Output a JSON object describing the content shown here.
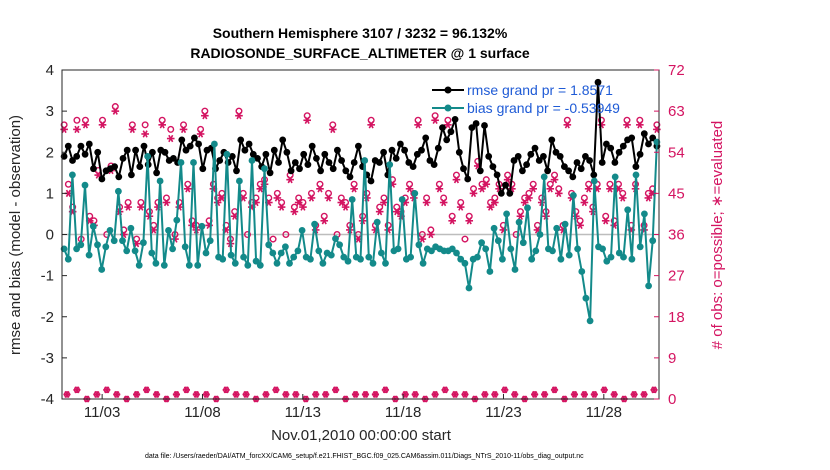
{
  "chart_data": {
    "type": "line",
    "title": "Southern Hemisphere 3107 / 3232 = 96.132%",
    "subtitle": "RADIOSONDE_SURFACE_ALTIMETER @ 1 surface",
    "xlabel": "Nov.01,2010 00:00:00 start",
    "ylabel": "rmse and bias (model - observation)",
    "y2label": "# of obs: o=possible; ∗=evaluated",
    "footer": "data file: /Users/raeder/DAI/ATM_forcXX/CAM6_setup/f.e21.FHIST_BGC.f09_025.CAM6assim.011/Diags_NTrS_2010-11/obs_diag_output.nc",
    "x_tick_labels": [
      "11/03",
      "11/08",
      "11/13",
      "11/18",
      "11/23",
      "11/28"
    ],
    "x_tick_days": [
      3,
      8,
      13,
      18,
      23,
      28
    ],
    "xlim": [
      1.0,
      30.75
    ],
    "ylim": [
      -4,
      4
    ],
    "y_ticks": [
      -4,
      -3,
      -2,
      -1,
      0,
      1,
      2,
      3,
      4
    ],
    "y2lim": [
      0,
      72
    ],
    "y2_ticks": [
      0,
      9,
      18,
      27,
      36,
      45,
      54,
      63,
      72
    ],
    "colors": {
      "rmse": "#000000",
      "bias": "#138a8a",
      "obs": "#d41461",
      "zero": "#bdbdbd",
      "legend_text": "#1f5bd6"
    },
    "series": [
      {
        "name": "rmse grand pr = 1.8571",
        "values": [
          1.9,
          2.15,
          1.8,
          1.9,
          2.15,
          1.95,
          2.2,
          1.6,
          2.0,
          1.35,
          1.55,
          1.6,
          1.65,
          1.4,
          1.85,
          2.05,
          1.45,
          2.05,
          1.65,
          2.15,
          1.7,
          2.0,
          1.5,
          2.05,
          2.0,
          1.8,
          1.85,
          1.75,
          2.3,
          2.05,
          2.15,
          2.35,
          2.2,
          1.6,
          2.05,
          2.1,
          1.6,
          1.8,
          2.0,
          1.75,
          1.9,
          1.55,
          2.3,
          2.05,
          2.2,
          1.95,
          1.85,
          1.65,
          1.95,
          1.5,
          2.05,
          1.75,
          2.3,
          2.0,
          1.55,
          1.75,
          1.6,
          1.95,
          1.7,
          2.15,
          1.85,
          1.55,
          1.95,
          1.75,
          1.6,
          2.05,
          1.8,
          1.55,
          1.4,
          1.75,
          2.15,
          1.65,
          1.45,
          1.3,
          1.8,
          1.75,
          2.0,
          1.45,
          2.05,
          1.85,
          2.2,
          2.05,
          1.75,
          1.65,
          1.95,
          2.05,
          2.35,
          1.8,
          1.7,
          2.1,
          2.6,
          2.3,
          2.5,
          2.8,
          2.0,
          1.6,
          1.35,
          2.6,
          2.7,
          1.55,
          2.65,
          1.9,
          1.65,
          1.45,
          1.0,
          1.2,
          1.0,
          1.8,
          1.9,
          1.55,
          1.7,
          1.95,
          2.1,
          1.8,
          1.9,
          1.55,
          2.3,
          2.0,
          1.9,
          1.65,
          1.55,
          1.4,
          1.75,
          1.6,
          1.9,
          1.8,
          1.45,
          3.7,
          1.75,
          2.2,
          2.1,
          1.75,
          2.0,
          2.15,
          2.3,
          2.35,
          1.65,
          1.95,
          2.45,
          2.2,
          2.35,
          2.15
        ]
      },
      {
        "name": "bias grand pr = -0.53949",
        "values": [
          -0.35,
          -0.6,
          1.45,
          -0.35,
          -0.25,
          1.2,
          -0.5,
          0.2,
          -0.25,
          -0.85,
          -0.3,
          0.1,
          -0.15,
          1.05,
          -0.15,
          -0.4,
          0.15,
          -0.4,
          -0.75,
          -0.2,
          1.9,
          -0.45,
          -0.7,
          1.3,
          -0.75,
          0.1,
          -0.35,
          0.35,
          1.75,
          -0.3,
          -0.75,
          1.75,
          -0.75,
          0.2,
          -0.45,
          -0.15,
          2.2,
          -0.55,
          -0.6,
          1.95,
          -0.5,
          -0.7,
          1.3,
          -0.55,
          -0.75,
          1.8,
          -0.65,
          -0.75,
          1.6,
          -0.25,
          -0.45,
          -0.7,
          -0.45,
          -0.3,
          -0.7,
          -0.55,
          -0.4,
          0.1,
          -0.55,
          -0.6,
          0.25,
          -0.4,
          -0.7,
          -0.45,
          -0.5,
          -0.1,
          -0.25,
          -0.55,
          -0.65,
          0.85,
          -0.55,
          -0.6,
          1.8,
          -0.55,
          -0.7,
          0.3,
          -0.45,
          -0.7,
          1.7,
          -0.4,
          -0.35,
          0.85,
          -0.6,
          -0.55,
          1.0,
          -0.25,
          -0.7,
          -0.35,
          -0.4,
          -0.3,
          -0.35,
          -0.4,
          -0.4,
          -0.35,
          -0.45,
          -0.6,
          -0.7,
          -1.3,
          -0.6,
          -0.55,
          -0.2,
          -0.35,
          -0.9,
          0.15,
          -0.15,
          -0.6,
          0.5,
          -0.35,
          -0.85,
          0.3,
          -0.2,
          0.65,
          -0.6,
          -0.4,
          0.0,
          1.4,
          -0.35,
          -0.4,
          0.15,
          -0.6,
          0.25,
          -0.5,
          0.95,
          -0.35,
          -0.9,
          -1.55,
          -2.1,
          1.3,
          -0.3,
          -0.35,
          -0.65,
          -0.55,
          1.4,
          -0.45,
          -0.55,
          0.6,
          -0.6,
          1.45,
          -0.3,
          0.5,
          -1.25,
          -0.15,
          2.25
        ]
      },
      {
        "name": "# of obs possible (o)",
        "values": [
          60,
          47,
          42,
          61,
          35,
          61,
          40,
          39,
          50,
          61,
          36,
          51,
          64,
          42,
          37,
          43,
          60,
          35,
          43,
          60,
          41,
          38,
          43,
          61,
          44,
          59,
          36,
          43,
          60,
          47,
          39,
          38,
          59,
          63,
          39,
          47,
          44,
          45,
          38,
          35,
          41,
          63,
          45,
          36,
          43,
          44,
          47,
          48,
          44,
          35,
          45,
          43,
          36,
          49,
          42,
          44,
          43,
          62,
          45,
          38,
          47,
          40,
          45,
          60,
          36,
          44,
          43,
          38,
          47,
          36,
          40,
          45,
          61,
          38,
          42,
          44,
          38,
          48,
          42,
          41,
          44,
          47,
          45,
          61,
          36,
          44,
          37,
          62,
          47,
          44,
          61,
          40,
          49,
          43,
          35,
          40,
          46,
          52,
          47,
          48,
          43,
          44,
          47,
          38,
          49,
          47,
          36,
          41,
          44,
          45,
          47,
          38,
          44,
          41,
          47,
          49,
          46,
          38,
          61,
          45,
          41,
          39,
          44,
          47,
          42,
          47,
          61,
          40,
          47,
          39,
          47,
          45,
          61,
          38,
          47,
          61,
          38,
          45,
          46,
          60
        ]
      },
      {
        "name": "# of obs evaluated (∗)",
        "values": [
          59,
          45,
          41,
          59,
          34,
          60,
          39,
          38,
          49,
          60,
          35,
          50,
          63,
          41,
          36,
          42,
          59,
          34,
          42,
          58,
          40,
          37,
          42,
          60,
          43,
          57,
          35,
          42,
          59,
          46,
          38,
          37,
          58,
          62,
          38,
          46,
          43,
          44,
          37,
          34,
          40,
          62,
          44,
          35,
          42,
          43,
          46,
          47,
          43,
          34,
          44,
          42,
          35,
          48,
          41,
          43,
          42,
          61,
          44,
          37,
          46,
          39,
          44,
          59,
          35,
          43,
          42,
          37,
          46,
          35,
          39,
          44,
          60,
          37,
          41,
          43,
          37,
          47,
          41,
          40,
          43,
          46,
          44,
          60,
          35,
          43,
          36,
          61,
          46,
          43,
          60,
          39,
          48,
          42,
          34,
          39,
          45,
          51,
          46,
          47,
          42,
          43,
          46,
          37,
          48,
          46,
          35,
          40,
          43,
          44,
          46,
          37,
          43,
          40,
          46,
          48,
          45,
          37,
          60,
          44,
          40,
          38,
          43,
          46,
          41,
          46,
          60,
          39,
          46,
          38,
          46,
          44,
          60,
          37,
          46,
          60,
          37,
          44,
          45,
          59
        ]
      }
    ],
    "low_obs_possible": [
      1,
      2,
      0,
      1,
      2,
      1,
      0,
      1,
      2,
      1,
      0,
      1,
      2,
      1,
      1,
      0,
      2,
      1,
      1,
      0,
      1,
      2,
      1,
      1,
      0,
      1,
      1,
      2,
      0,
      1,
      1,
      1,
      2,
      0,
      1,
      1,
      0,
      1,
      2,
      1,
      1,
      0,
      1,
      1,
      2,
      1,
      0,
      1,
      1,
      2,
      0,
      1,
      1,
      1,
      2,
      1,
      0,
      1,
      1,
      2
    ],
    "low_obs_evaluated": [
      1,
      2,
      0,
      1,
      2,
      1,
      0,
      1,
      2,
      1,
      0,
      1,
      2,
      1,
      1,
      0,
      2,
      1,
      1,
      0,
      1,
      2,
      1,
      1,
      0,
      1,
      1,
      2,
      0,
      1,
      1,
      1,
      2,
      0,
      1,
      1,
      0,
      1,
      2,
      1,
      1,
      0,
      1,
      1,
      2,
      1,
      0,
      1,
      1,
      2,
      0,
      1,
      1,
      1,
      2,
      1,
      0,
      1,
      1,
      2
    ]
  }
}
